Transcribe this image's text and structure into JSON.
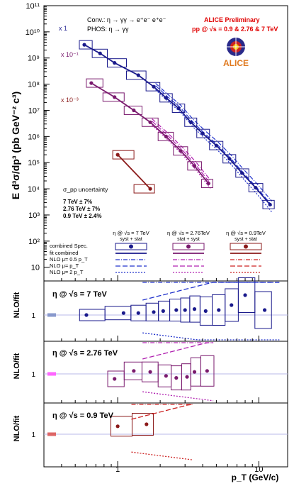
{
  "figure": {
    "header_conv": "Conv.: η → γγ → e⁺e⁻ e⁺e⁻",
    "header_phos": "PHOS: η → γγ",
    "collab_line1": "ALICE Preliminary",
    "collab_line2": "pp @ √s = 0.9 & 2.76 & 7 TeV",
    "logo_text": "ALICE",
    "ylabel_top": "E d³σ/dp³ (pb GeV⁻² c³)",
    "xlabel": "p_T (GeV/c)",
    "scale_7": "x 1",
    "scale_276": "x 10⁻¹",
    "scale_09": "x 10⁻³",
    "sigma_title": "σ_pp uncertainty",
    "sigma_lines": [
      "7 TeV  ± 7%",
      "2.76 TeV ± 7%",
      "0.9 TeV ± 2.4%"
    ],
    "legend_rows": [
      "combined Spec.",
      "fit combined",
      "NLO μ= 0.5 p_T",
      "NLO μ= p_T",
      "NLO μ= 2 p_T"
    ],
    "legend_cols": [
      "η @ √s = 7 TeV",
      "η @ √s = 2.76TeV",
      "η @ √s = 0.9TeV"
    ],
    "legend_subs": [
      "syst + stat",
      "stat + syst",
      "syst + stat"
    ],
    "ratio_ylabel": "NLO/fit",
    "ratio_titles": [
      "η @ √s = 7 TeV",
      "η @ √s = 2.76 TeV",
      "η @ √s = 0.9 TeV"
    ]
  },
  "chart_data": {
    "type": "scatter",
    "x_scale": "log",
    "y_scale": "log",
    "xlim": [
      0.3,
      16
    ],
    "ylim": [
      3,
      100000000000
    ],
    "x_ticks": [
      "1",
      "10"
    ],
    "y_ticks": [
      "10",
      "10²",
      "10³",
      "10⁴",
      "10⁵",
      "10⁶",
      "10⁷",
      "10⁸",
      "10⁹",
      "10¹⁰",
      "10¹¹"
    ],
    "colors": {
      "s7": "#1a1a8c",
      "s276": "#7a1a6e",
      "s09": "#8b1a1a",
      "nlo7": "#2233cc",
      "nlo276": "#b020b0",
      "nlo09": "#cc2222",
      "unc7": "#8899cc",
      "unc276": "#ff66ff",
      "unc09": "#dd6666"
    },
    "series": [
      {
        "name": "η @ √s = 7 TeV",
        "points": [
          [
            0.58,
            3200000000.0
          ],
          [
            0.75,
            1500000000.0
          ],
          [
            0.95,
            650000000.0
          ],
          [
            1.4,
            220000000.0
          ],
          [
            1.8,
            80000000.0
          ],
          [
            2.2,
            30000000.0
          ],
          [
            2.7,
            12000000.0
          ],
          [
            3.3,
            3500000.0
          ],
          [
            4.0,
            1300000.0
          ],
          [
            5.0,
            450000.0
          ],
          [
            6.2,
            140000.0
          ],
          [
            7.6,
            40000.0
          ],
          [
            9.5,
            11000.0
          ],
          [
            12.0,
            2500.0
          ]
        ],
        "ratio": [
          [
            0.6,
            1.0
          ],
          [
            1.1,
            1.02
          ],
          [
            1.4,
            1.02
          ],
          [
            1.8,
            1.03
          ],
          [
            2.1,
            1.04
          ],
          [
            2.6,
            1.05
          ],
          [
            3.0,
            1.05
          ],
          [
            3.5,
            1.06
          ],
          [
            4.2,
            1.04
          ],
          [
            5.2,
            1.05
          ],
          [
            6.4,
            1.1
          ],
          [
            8.0,
            1.2
          ],
          [
            11.0,
            1.05
          ]
        ]
      },
      {
        "name": "η @ √s = 2.76TeV",
        "points": [
          [
            0.65,
            110000000.0
          ],
          [
            0.95,
            32000000.0
          ],
          [
            1.3,
            10000000.0
          ],
          [
            1.7,
            3500000.0
          ],
          [
            2.2,
            1000000.0
          ],
          [
            2.8,
            280000.0
          ],
          [
            3.5,
            75000.0
          ],
          [
            4.4,
            16000.0
          ]
        ],
        "ratio": [
          [
            0.95,
            0.95
          ],
          [
            1.3,
            1.03
          ],
          [
            1.7,
            1.02
          ],
          [
            2.2,
            0.98
          ],
          [
            2.6,
            0.96
          ],
          [
            3.1,
            0.97
          ],
          [
            3.5,
            1.02
          ],
          [
            4.3,
            1.03
          ]
        ]
      },
      {
        "name": "η @ √s = 0.9TeV",
        "points": [
          [
            1.0,
            200000.0
          ],
          [
            1.7,
            10000.0
          ]
        ],
        "ratio": [
          [
            1.0,
            1.08
          ],
          [
            1.6,
            1.1
          ]
        ]
      }
    ]
  }
}
